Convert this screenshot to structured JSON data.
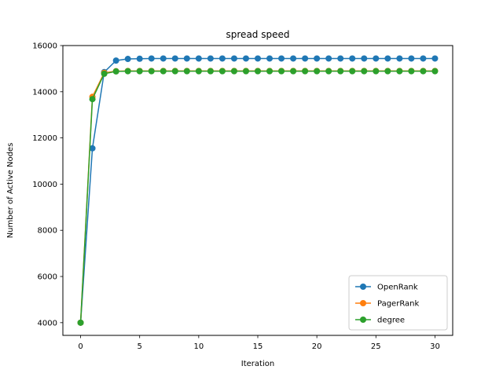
{
  "chart_data": {
    "type": "line",
    "title": "spread speed",
    "xlabel": "Iteration",
    "ylabel": "Number of Active Nodes",
    "xlim": [
      -1.5,
      31.5
    ],
    "ylim": [
      3450,
      16000
    ],
    "xticks": [
      0,
      5,
      10,
      15,
      20,
      25,
      30
    ],
    "yticks": [
      4000,
      6000,
      8000,
      10000,
      12000,
      14000,
      16000
    ],
    "grid": false,
    "legend_position": "lower-right",
    "x": [
      0,
      1,
      2,
      3,
      4,
      5,
      6,
      7,
      8,
      9,
      10,
      11,
      12,
      13,
      14,
      15,
      16,
      17,
      18,
      19,
      20,
      21,
      22,
      23,
      24,
      25,
      26,
      27,
      28,
      29,
      30
    ],
    "series": [
      {
        "name": "OpenRank",
        "color": "#1f77b4",
        "values": [
          4000,
          11550,
          14850,
          15350,
          15420,
          15430,
          15440,
          15440,
          15440,
          15440,
          15440,
          15440,
          15440,
          15440,
          15440,
          15440,
          15440,
          15440,
          15440,
          15440,
          15440,
          15440,
          15440,
          15440,
          15440,
          15440,
          15440,
          15440,
          15440,
          15440,
          15440
        ]
      },
      {
        "name": "PagerRank",
        "color": "#ff7f0e",
        "values": [
          4000,
          13780,
          14820,
          14890,
          14900,
          14900,
          14900,
          14900,
          14900,
          14900,
          14900,
          14900,
          14900,
          14900,
          14900,
          14900,
          14900,
          14900,
          14900,
          14900,
          14900,
          14900,
          14900,
          14900,
          14900,
          14900,
          14900,
          14900,
          14900,
          14900,
          14900
        ]
      },
      {
        "name": "degree",
        "color": "#2ca02c",
        "values": [
          4000,
          13680,
          14780,
          14880,
          14890,
          14890,
          14890,
          14890,
          14890,
          14890,
          14890,
          14890,
          14890,
          14890,
          14890,
          14890,
          14890,
          14890,
          14890,
          14890,
          14890,
          14890,
          14890,
          14890,
          14890,
          14890,
          14890,
          14890,
          14890,
          14890,
          14890
        ]
      }
    ]
  }
}
